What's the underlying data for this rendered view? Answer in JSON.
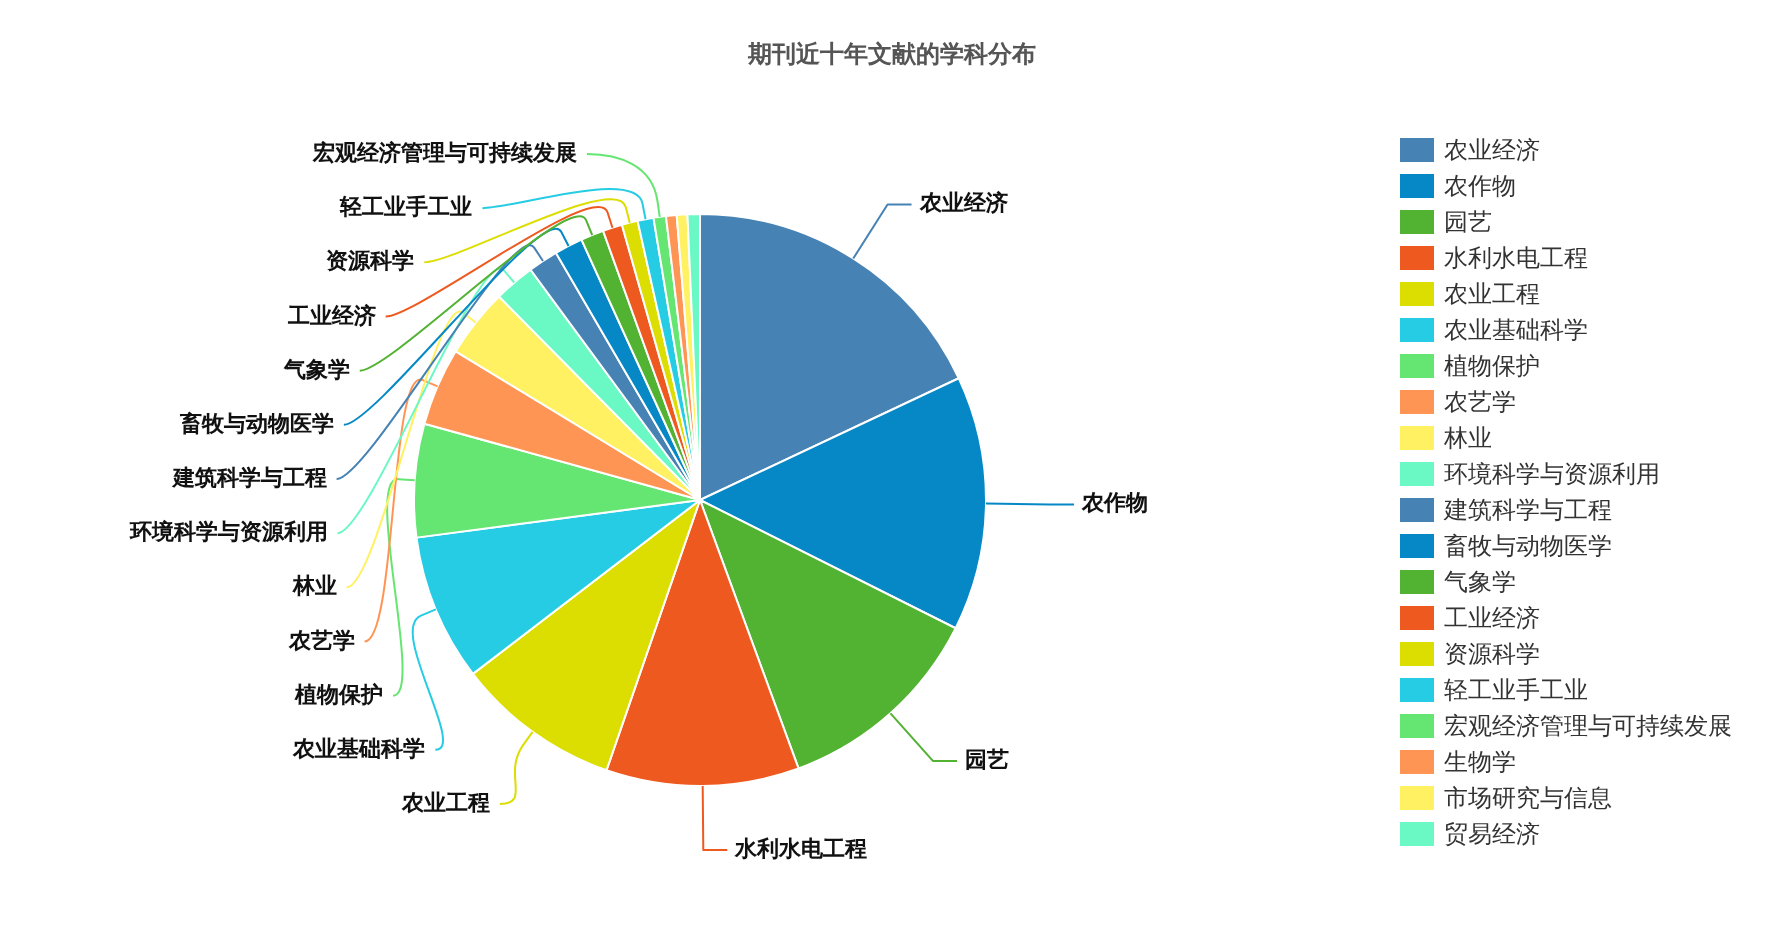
{
  "chart_data": {
    "type": "pie",
    "title": "期刊近十年文献的学科分布",
    "categories": [
      "农业经济",
      "农作物",
      "园艺",
      "水利水电工程",
      "农业工程",
      "农业基础科学",
      "植物保护",
      "农艺学",
      "林业",
      "环境科学与资源利用",
      "建筑科学与工程",
      "畜牧与动物医学",
      "气象学",
      "工业经济",
      "资源科学",
      "轻工业手工业",
      "宏观经济管理与可持续发展",
      "生物学",
      "市场研究与信息",
      "贸易经济"
    ],
    "values": [
      18.0,
      14.4,
      12.0,
      10.9,
      9.3,
      8.3,
      6.4,
      4.4,
      3.9,
      2.3,
      1.7,
      1.6,
      1.3,
      1.1,
      0.9,
      0.9,
      0.7,
      0.6,
      0.6,
      0.7
    ],
    "colors": [
      "#4682b4",
      "#0588c5",
      "#52b232",
      "#ee591f",
      "#dcdd00",
      "#26cbe4",
      "#65e571",
      "#ff9554",
      "#fff162",
      "#6af8c4",
      "#4682b4",
      "#0588c5",
      "#52b232",
      "#ee591f",
      "#dcdd00",
      "#26cbe4",
      "#65e571",
      "#ff9554",
      "#fff162",
      "#6af8c4"
    ],
    "legend": "right"
  }
}
